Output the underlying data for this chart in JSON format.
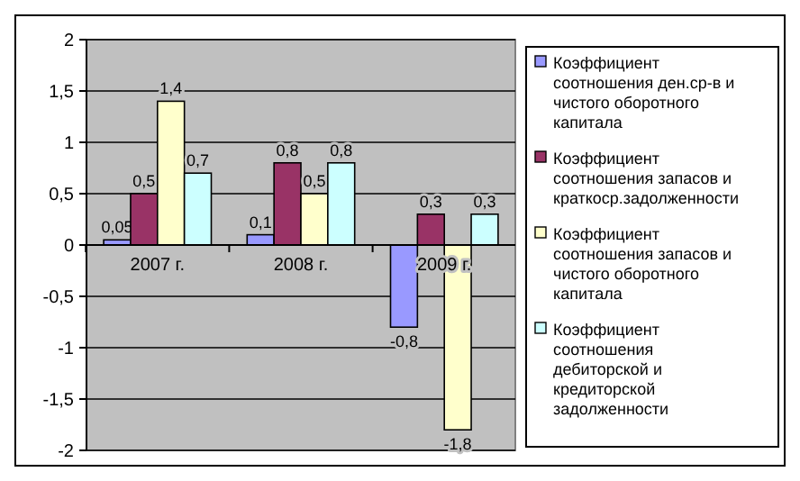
{
  "chart_data": {
    "type": "bar",
    "categories": [
      "2007 г.",
      "2008 г.",
      "2009 г."
    ],
    "series": [
      {
        "name": "Коэффициент соотношения ден.ср-в и чистого оборотного капитала",
        "color": "#9999ff",
        "values": [
          0.05,
          0.1,
          -0.8
        ],
        "value_labels": [
          "0,05",
          "0,1",
          "-0,8"
        ]
      },
      {
        "name": "Коэффициент соотношения запасов и краткоср.задолженности",
        "color": "#993366",
        "values": [
          0.5,
          0.8,
          0.3
        ],
        "value_labels": [
          "0,5",
          "0,8",
          "0,3"
        ]
      },
      {
        "name": "Коэффициент соотношения запасов и чистого оборотного капитала",
        "color": "#ffffcc",
        "values": [
          1.4,
          0.5,
          -1.8
        ],
        "value_labels": [
          "1,4",
          "0,5",
          "-1,8"
        ]
      },
      {
        "name": "Коэффициент соотношения дебиторской и кредиторской задолженности",
        "color": "#ccffff",
        "values": [
          0.7,
          0.8,
          0.3
        ],
        "value_labels": [
          "0,7",
          "0,8",
          "0,3"
        ]
      }
    ],
    "ylim": [
      -2,
      2
    ],
    "yticks": [
      {
        "value": -2,
        "label": "-2"
      },
      {
        "value": -1.5,
        "label": "-1,5"
      },
      {
        "value": -1,
        "label": "-1"
      },
      {
        "value": -0.5,
        "label": "-0,5"
      },
      {
        "value": 0,
        "label": "0"
      },
      {
        "value": 0.5,
        "label": "0,5"
      },
      {
        "value": 1,
        "label": "1"
      },
      {
        "value": 1.5,
        "label": "1,5"
      },
      {
        "value": 2,
        "label": "2"
      }
    ],
    "grid": "y",
    "legend": "right"
  }
}
